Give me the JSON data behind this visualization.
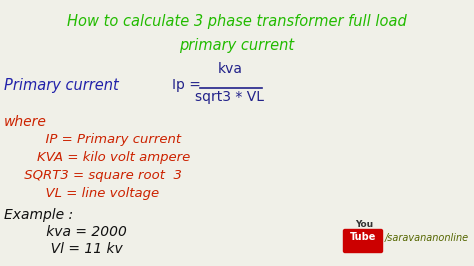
{
  "bg_color": "#f0f0e8",
  "title_line1": "How to calculate 3 phase transformer full load",
  "title_line2": "primary current",
  "title_color": "#22bb00",
  "title_fontsize": 10.5,
  "formula_label": "Primary current ",
  "formula_label_color": "#2222aa",
  "formula_ip_color": "#22228a",
  "formula_numerator": "kva",
  "formula_denominator": "sqrt3 * VL",
  "formula_color": "#22228a",
  "where_text": "where",
  "where_color": "#cc2200",
  "where_fontsize": 10,
  "definitions": [
    "      IP = Primary current",
    "    KVA = kilo volt ampere",
    " SQRT3 = square root  3",
    "      VL = line voltage"
  ],
  "def_color": "#cc2200",
  "def_fontsize": 9.5,
  "example_text": "Example :",
  "example_color": "#111111",
  "example_fontsize": 10,
  "example_vals": [
    "      kva = 2000",
    "       Vl = 11 kv"
  ],
  "example_val_color": "#111111",
  "example_val_fontsize": 10,
  "youtube_text": "/saravananonline",
  "youtube_color": "#556600",
  "you_color": "#333333",
  "tube_bg": "#cc0000"
}
